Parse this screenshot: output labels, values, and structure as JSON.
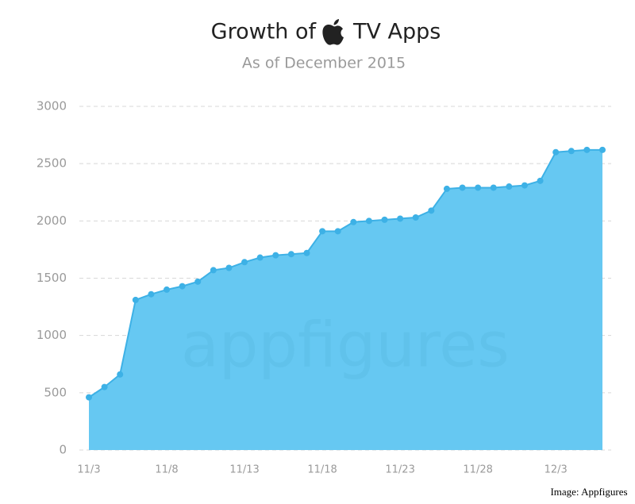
{
  "chart_data": {
    "type": "area",
    "title_parts": [
      "Growth of",
      "TV Apps"
    ],
    "subtitle": "As of December 2015",
    "watermark": "appfigures",
    "credit": "Image: Appfigures",
    "categories": [
      "11/3",
      null,
      null,
      null,
      null,
      "11/8",
      null,
      null,
      null,
      null,
      "11/13",
      null,
      null,
      null,
      null,
      "11/18",
      null,
      null,
      null,
      null,
      "11/23",
      null,
      null,
      null,
      null,
      "11/28",
      null,
      null,
      null,
      null,
      "12/3",
      null,
      null,
      null
    ],
    "values": [
      460,
      550,
      660,
      1310,
      1360,
      1400,
      1430,
      1470,
      1570,
      1590,
      1640,
      1680,
      1700,
      1710,
      1720,
      1910,
      1910,
      1990,
      2000,
      2010,
      2020,
      2030,
      2090,
      2280,
      2290,
      2290,
      2290,
      2300,
      2310,
      2350,
      2600,
      2610,
      2620,
      2620
    ],
    "color": "#66c8f2",
    "line_color": "#3db1e6",
    "ylim": [
      0,
      3000
    ],
    "yticks": [
      0,
      500,
      1000,
      1500,
      2000,
      2500,
      3000
    ],
    "grid": true
  }
}
